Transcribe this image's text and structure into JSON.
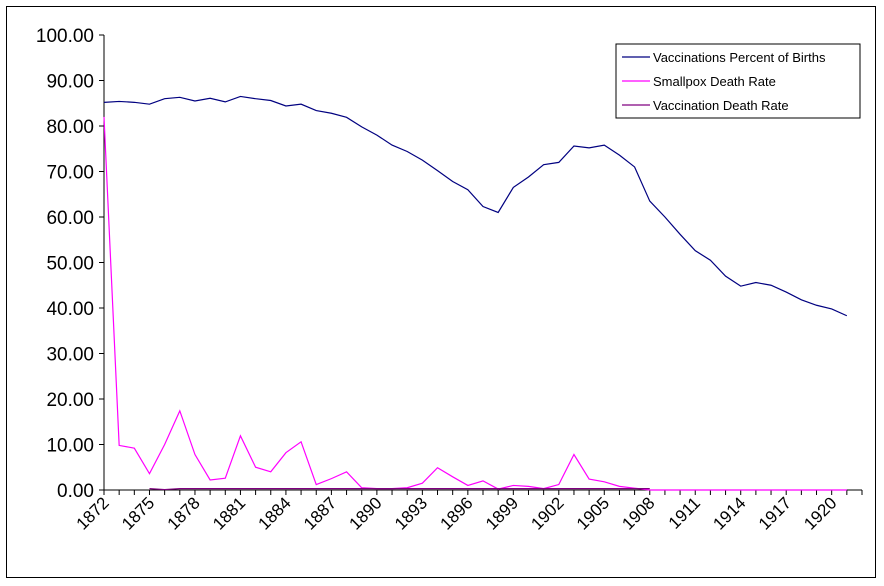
{
  "chart_data": {
    "type": "line",
    "title": "",
    "xlabel": "",
    "ylabel": "",
    "ylim": [
      0,
      100
    ],
    "yticks": [
      "0.00",
      "10.00",
      "20.00",
      "30.00",
      "40.00",
      "50.00",
      "60.00",
      "70.00",
      "80.00",
      "90.00",
      "100.00"
    ],
    "x": [
      1872,
      1873,
      1874,
      1875,
      1876,
      1877,
      1878,
      1879,
      1880,
      1881,
      1882,
      1883,
      1884,
      1885,
      1886,
      1887,
      1888,
      1889,
      1890,
      1891,
      1892,
      1893,
      1894,
      1895,
      1896,
      1897,
      1898,
      1899,
      1900,
      1901,
      1902,
      1903,
      1904,
      1905,
      1906,
      1907,
      1908,
      1909,
      1910,
      1911,
      1912,
      1913,
      1914,
      1915,
      1916,
      1917,
      1918,
      1919,
      1920,
      1921,
      1922
    ],
    "xtick_labels": [
      "1872",
      "1875",
      "1878",
      "1881",
      "1884",
      "1887",
      "1890",
      "1893",
      "1896",
      "1899",
      "1902",
      "1905",
      "1908",
      "1911",
      "1914",
      "1917",
      "1920"
    ],
    "legend_position": "top-right",
    "grid": false,
    "series": [
      {
        "name": "Vaccinations Percent of Births",
        "color": "#000080",
        "values": [
          85.2,
          85.4,
          85.2,
          84.8,
          86.0,
          86.3,
          85.5,
          86.1,
          85.3,
          86.5,
          86.0,
          85.6,
          84.4,
          84.8,
          83.4,
          82.8,
          81.9,
          79.8,
          78.0,
          75.8,
          74.4,
          72.5,
          70.2,
          67.8,
          66.0,
          62.3,
          61.0,
          66.5,
          68.8,
          71.5,
          72.0,
          75.6,
          75.2,
          75.8,
          73.6,
          71.0,
          63.5,
          60.0,
          56.2,
          52.6,
          50.5,
          47.0,
          44.8,
          45.6,
          45.0,
          43.5,
          41.8,
          40.6,
          39.8,
          38.3,
          null
        ]
      },
      {
        "name": "Smallpox Death Rate",
        "color": "#ff00ff",
        "values": [
          82.0,
          9.8,
          9.2,
          3.6,
          10.0,
          17.4,
          7.8,
          2.2,
          2.6,
          11.9,
          5.0,
          4.0,
          8.2,
          10.6,
          1.2,
          2.5,
          4.0,
          0.5,
          0.3,
          0.3,
          0.5,
          1.5,
          4.9,
          2.9,
          1.0,
          2.0,
          0.2,
          1.0,
          0.8,
          0.3,
          1.2,
          7.8,
          2.4,
          1.8,
          0.8,
          0.4,
          0.0,
          0.0,
          0.0,
          0.0,
          0.0,
          0.0,
          0.0,
          0.0,
          0.0,
          0.0,
          0.0,
          0.0,
          0.0,
          0.0,
          null
        ]
      },
      {
        "name": "Vaccination Death Rate",
        "color": "#800080",
        "values": [
          null,
          null,
          null,
          0.3,
          0.1,
          0.3,
          0.3,
          0.3,
          0.3,
          0.3,
          0.3,
          0.3,
          0.3,
          0.3,
          0.3,
          0.3,
          0.3,
          0.3,
          0.3,
          0.3,
          0.3,
          0.3,
          0.3,
          0.3,
          0.3,
          0.3,
          0.3,
          0.3,
          0.3,
          0.3,
          0.3,
          0.3,
          0.3,
          0.3,
          0.3,
          0.3,
          0.3,
          null,
          null,
          null,
          null,
          null,
          null,
          null,
          null,
          null,
          null,
          null,
          null,
          null,
          null
        ]
      }
    ]
  }
}
